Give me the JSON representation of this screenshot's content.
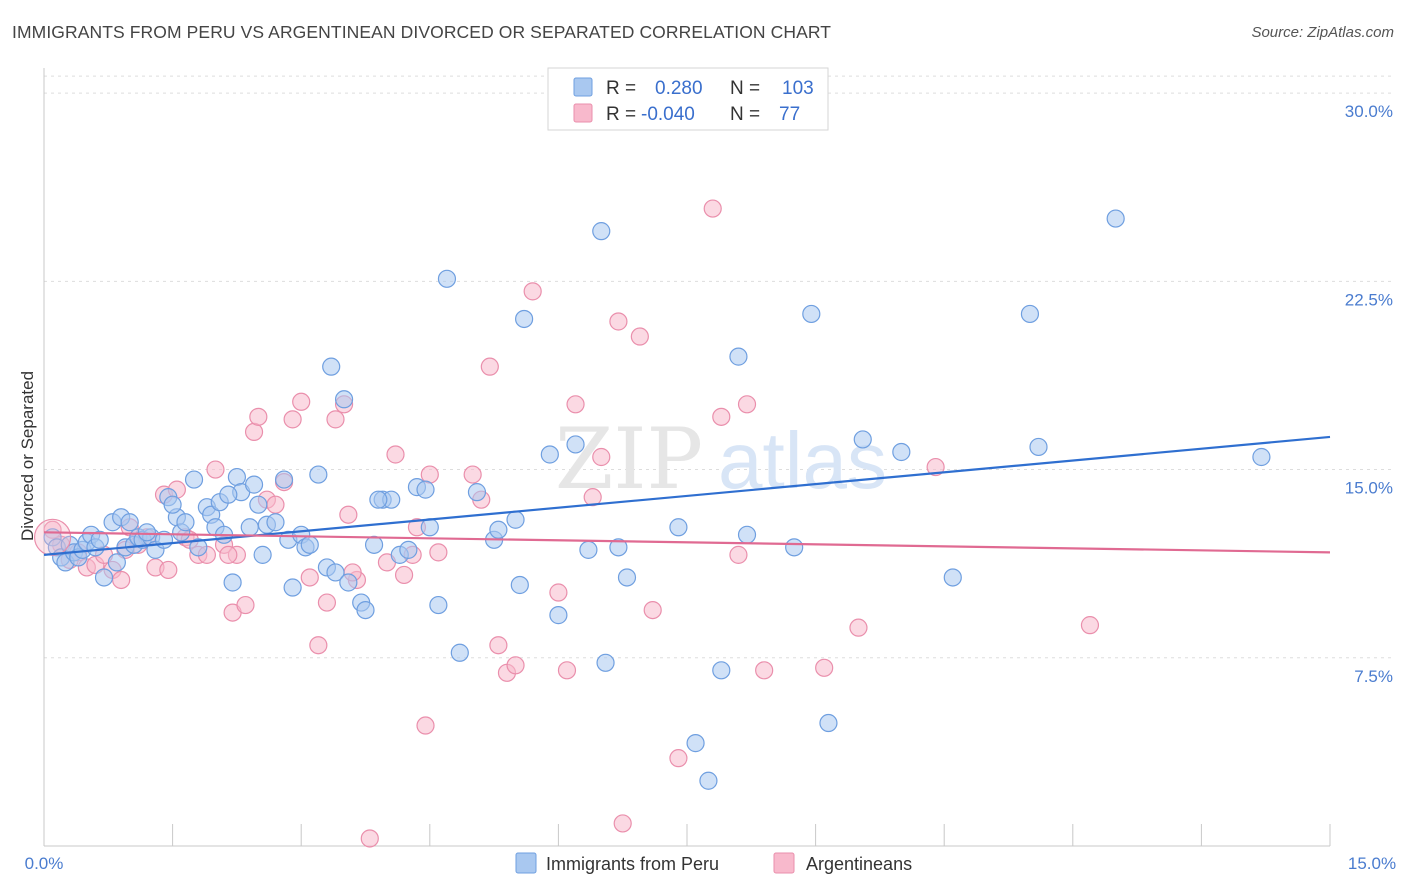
{
  "title": "IMMIGRANTS FROM PERU VS ARGENTINEAN DIVORCED OR SEPARATED CORRELATION CHART",
  "source": "Source: ZipAtlas.com",
  "watermark": {
    "zip": "ZIP",
    "atlas": "atlas"
  },
  "colors": {
    "blue": "#a9c8f0",
    "blue_stroke": "#6f9fe0",
    "blue_line": "#2f6fd0",
    "pink": "#f8b9cc",
    "pink_stroke": "#ea8fac",
    "pink_line": "#e06a92",
    "tick_text": "#4a7ccf"
  },
  "stats": {
    "r_label": "R =",
    "n_label": "N =",
    "rows": [
      {
        "series": "Immigrants from Peru",
        "r": "0.280",
        "n": "103"
      },
      {
        "series": "Argentineans",
        "r": "-0.040",
        "n": "77"
      }
    ]
  },
  "chart_data": {
    "type": "scatter",
    "title": "IMMIGRANTS FROM PERU VS ARGENTINEAN DIVORCED OR SEPARATED CORRELATION CHART",
    "xlabel": "",
    "ylabel": "Divorced or Separated",
    "xlim": [
      0,
      15
    ],
    "ylim": [
      0,
      31
    ],
    "x_tick_labels": [
      "0.0%",
      "15.0%"
    ],
    "y_ticks": [
      7.5,
      15.0,
      22.5,
      30.0
    ],
    "y_tick_labels": [
      "7.5%",
      "15.0%",
      "22.5%",
      "30.0%"
    ],
    "grid": true,
    "legend_position": "bottom-center",
    "series": [
      {
        "name": "Immigrants from Peru",
        "color": "#a9c8f0",
        "trend": {
          "x": [
            0,
            15
          ],
          "y": [
            11.6,
            16.3
          ]
        },
        "points": [
          [
            0.1,
            12.3
          ],
          [
            0.15,
            11.9
          ],
          [
            0.2,
            11.5
          ],
          [
            0.25,
            11.3
          ],
          [
            0.3,
            12.0
          ],
          [
            0.35,
            11.7
          ],
          [
            0.4,
            11.5
          ],
          [
            0.45,
            11.8
          ],
          [
            0.5,
            12.1
          ],
          [
            0.55,
            12.4
          ],
          [
            0.6,
            11.9
          ],
          [
            0.7,
            10.7
          ],
          [
            0.8,
            12.9
          ],
          [
            0.85,
            11.3
          ],
          [
            0.9,
            13.1
          ],
          [
            0.95,
            11.9
          ],
          [
            1.0,
            12.9
          ],
          [
            1.05,
            12.0
          ],
          [
            1.1,
            12.3
          ],
          [
            1.15,
            12.2
          ],
          [
            1.25,
            12.3
          ],
          [
            1.3,
            11.8
          ],
          [
            1.4,
            12.2
          ],
          [
            1.45,
            13.9
          ],
          [
            1.55,
            13.1
          ],
          [
            1.6,
            12.5
          ],
          [
            1.65,
            12.9
          ],
          [
            1.75,
            14.6
          ],
          [
            1.8,
            11.9
          ],
          [
            1.9,
            13.5
          ],
          [
            1.95,
            13.2
          ],
          [
            2.0,
            12.7
          ],
          [
            2.05,
            13.7
          ],
          [
            2.1,
            12.4
          ],
          [
            2.2,
            10.5
          ],
          [
            2.25,
            14.7
          ],
          [
            2.3,
            14.1
          ],
          [
            2.4,
            12.7
          ],
          [
            2.45,
            14.4
          ],
          [
            2.5,
            13.6
          ],
          [
            2.55,
            11.6
          ],
          [
            2.6,
            12.8
          ],
          [
            2.7,
            12.9
          ],
          [
            2.8,
            14.6
          ],
          [
            2.85,
            12.2
          ],
          [
            2.9,
            10.3
          ],
          [
            3.0,
            12.4
          ],
          [
            3.05,
            11.9
          ],
          [
            3.1,
            12.0
          ],
          [
            3.2,
            14.8
          ],
          [
            3.3,
            11.1
          ],
          [
            3.35,
            19.1
          ],
          [
            3.4,
            10.9
          ],
          [
            3.5,
            17.8
          ],
          [
            3.55,
            10.5
          ],
          [
            3.7,
            9.7
          ],
          [
            3.75,
            9.4
          ],
          [
            3.85,
            12.0
          ],
          [
            3.95,
            13.8
          ],
          [
            4.05,
            13.8
          ],
          [
            4.15,
            11.6
          ],
          [
            4.25,
            11.8
          ],
          [
            4.35,
            14.3
          ],
          [
            4.45,
            14.2
          ],
          [
            4.5,
            12.7
          ],
          [
            4.6,
            9.6
          ],
          [
            4.7,
            22.6
          ],
          [
            4.85,
            7.7
          ],
          [
            5.05,
            14.1
          ],
          [
            5.25,
            12.2
          ],
          [
            5.3,
            12.6
          ],
          [
            5.5,
            13.0
          ],
          [
            5.55,
            10.4
          ],
          [
            5.6,
            21.0
          ],
          [
            5.9,
            15.6
          ],
          [
            6.0,
            9.2
          ],
          [
            6.2,
            16.0
          ],
          [
            6.35,
            11.8
          ],
          [
            6.5,
            24.5
          ],
          [
            6.55,
            7.3
          ],
          [
            6.7,
            11.9
          ],
          [
            6.8,
            10.7
          ],
          [
            7.4,
            12.7
          ],
          [
            7.6,
            4.1
          ],
          [
            7.75,
            2.6
          ],
          [
            7.9,
            7.0
          ],
          [
            8.1,
            19.5
          ],
          [
            8.2,
            12.4
          ],
          [
            8.75,
            11.9
          ],
          [
            8.95,
            21.2
          ],
          [
            9.15,
            4.9
          ],
          [
            9.55,
            16.2
          ],
          [
            10.0,
            15.7
          ],
          [
            10.6,
            10.7
          ],
          [
            11.5,
            21.2
          ],
          [
            11.6,
            15.9
          ],
          [
            12.5,
            25.0
          ],
          [
            14.2,
            15.5
          ],
          [
            1.5,
            13.6
          ],
          [
            2.15,
            14.0
          ],
          [
            3.9,
            13.8
          ],
          [
            1.2,
            12.5
          ],
          [
            0.65,
            12.2
          ]
        ]
      },
      {
        "name": "Argentineans",
        "color": "#f8b9cc",
        "trend": {
          "x": [
            0,
            15
          ],
          "y": [
            12.5,
            11.7
          ]
        },
        "points": [
          [
            0.1,
            12.6
          ],
          [
            0.2,
            12.0
          ],
          [
            0.3,
            11.4
          ],
          [
            0.4,
            11.7
          ],
          [
            0.5,
            11.1
          ],
          [
            0.6,
            11.2
          ],
          [
            0.7,
            11.6
          ],
          [
            0.8,
            11.0
          ],
          [
            0.9,
            10.6
          ],
          [
            1.0,
            12.7
          ],
          [
            1.1,
            12.0
          ],
          [
            1.2,
            12.3
          ],
          [
            1.3,
            11.1
          ],
          [
            1.4,
            14.0
          ],
          [
            1.55,
            14.2
          ],
          [
            1.65,
            12.3
          ],
          [
            1.7,
            12.2
          ],
          [
            1.8,
            11.6
          ],
          [
            1.9,
            11.6
          ],
          [
            2.0,
            15.0
          ],
          [
            2.1,
            12.0
          ],
          [
            2.2,
            9.3
          ],
          [
            2.25,
            11.6
          ],
          [
            2.35,
            9.6
          ],
          [
            2.45,
            16.5
          ],
          [
            2.5,
            17.1
          ],
          [
            2.6,
            13.8
          ],
          [
            2.7,
            13.6
          ],
          [
            2.8,
            14.5
          ],
          [
            2.9,
            17.0
          ],
          [
            3.0,
            17.7
          ],
          [
            3.1,
            10.7
          ],
          [
            3.2,
            8.0
          ],
          [
            3.3,
            9.7
          ],
          [
            3.4,
            17.0
          ],
          [
            3.5,
            17.6
          ],
          [
            3.55,
            13.2
          ],
          [
            3.65,
            10.6
          ],
          [
            3.8,
            0.3
          ],
          [
            4.0,
            11.3
          ],
          [
            4.1,
            15.6
          ],
          [
            4.2,
            10.8
          ],
          [
            4.3,
            11.6
          ],
          [
            4.35,
            12.7
          ],
          [
            4.45,
            4.8
          ],
          [
            4.5,
            14.8
          ],
          [
            4.6,
            11.7
          ],
          [
            5.0,
            14.8
          ],
          [
            5.1,
            13.8
          ],
          [
            5.2,
            19.1
          ],
          [
            5.3,
            8.0
          ],
          [
            5.4,
            6.9
          ],
          [
            5.5,
            7.2
          ],
          [
            5.7,
            22.1
          ],
          [
            6.0,
            10.1
          ],
          [
            6.1,
            7.0
          ],
          [
            6.2,
            17.6
          ],
          [
            6.4,
            13.9
          ],
          [
            6.5,
            15.5
          ],
          [
            6.7,
            20.9
          ],
          [
            6.75,
            0.9
          ],
          [
            6.95,
            20.3
          ],
          [
            7.1,
            9.4
          ],
          [
            7.4,
            3.5
          ],
          [
            7.8,
            25.4
          ],
          [
            7.9,
            17.1
          ],
          [
            8.1,
            11.6
          ],
          [
            8.2,
            17.6
          ],
          [
            8.4,
            7.0
          ],
          [
            9.1,
            7.1
          ],
          [
            9.5,
            8.7
          ],
          [
            10.4,
            15.1
          ],
          [
            12.2,
            8.8
          ],
          [
            3.6,
            10.9
          ],
          [
            2.15,
            11.6
          ],
          [
            1.45,
            11.0
          ],
          [
            0.95,
            11.8
          ]
        ]
      }
    ]
  },
  "legend": {
    "items": [
      {
        "label": "Immigrants from Peru"
      },
      {
        "label": "Argentineans"
      }
    ]
  }
}
